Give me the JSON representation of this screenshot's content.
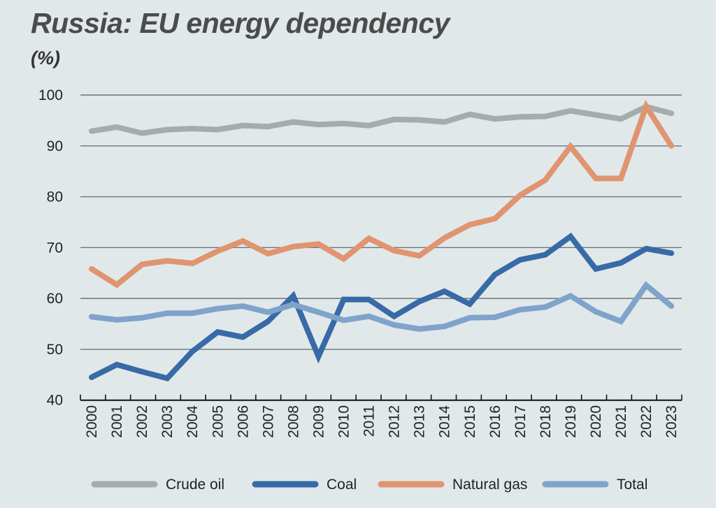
{
  "chart_data": {
    "type": "line",
    "title": "Russia: EU energy dependency",
    "ylabel": "(%)",
    "xlabel": "",
    "ylim": [
      40,
      100
    ],
    "yticks": [
      "40",
      "50",
      "60",
      "70",
      "80",
      "90",
      "100"
    ],
    "grid": true,
    "legend": "bottom",
    "categories": [
      "2000",
      "2001",
      "2002",
      "2003",
      "2004",
      "2005",
      "2006",
      "2007",
      "2008",
      "2009",
      "2010",
      "2011",
      "2012",
      "2013",
      "2014",
      "2015",
      "2016",
      "2017",
      "2018",
      "2019",
      "2020",
      "2021",
      "2022",
      "2023"
    ],
    "series": [
      {
        "name": "Crude oil",
        "color": "#a3aeac",
        "values": [
          92.9,
          93.7,
          92.5,
          93.2,
          93.4,
          93.2,
          94.0,
          93.8,
          94.7,
          94.2,
          94.4,
          94.0,
          95.2,
          95.1,
          94.7,
          96.2,
          95.3,
          95.7,
          95.8,
          96.9,
          96.1,
          95.3,
          97.7,
          96.4
        ]
      },
      {
        "name": "Coal",
        "color": "#376aa6",
        "values": [
          44.5,
          47.0,
          45.6,
          44.3,
          49.6,
          53.4,
          52.4,
          55.5,
          60.5,
          48.6,
          59.8,
          59.8,
          56.5,
          59.4,
          61.4,
          58.9,
          64.7,
          67.6,
          68.6,
          72.2,
          65.8,
          67.0,
          69.8,
          68.9
        ]
      },
      {
        "name": "Natural gas",
        "color": "#e0946f",
        "values": [
          65.8,
          62.7,
          66.7,
          67.4,
          66.9,
          69.3,
          71.3,
          68.8,
          70.2,
          70.7,
          67.8,
          71.8,
          69.4,
          68.4,
          71.9,
          74.5,
          75.7,
          80.3,
          83.3,
          89.9,
          83.6,
          83.6,
          97.8,
          90.0
        ]
      },
      {
        "name": "Total",
        "color": "#7fa3ca",
        "values": [
          56.4,
          55.8,
          56.2,
          57.1,
          57.1,
          58.0,
          58.5,
          57.3,
          58.8,
          57.3,
          55.7,
          56.5,
          54.8,
          54.0,
          54.5,
          56.2,
          56.3,
          57.8,
          58.3,
          60.5,
          57.4,
          55.5,
          62.6,
          58.5
        ]
      }
    ]
  }
}
